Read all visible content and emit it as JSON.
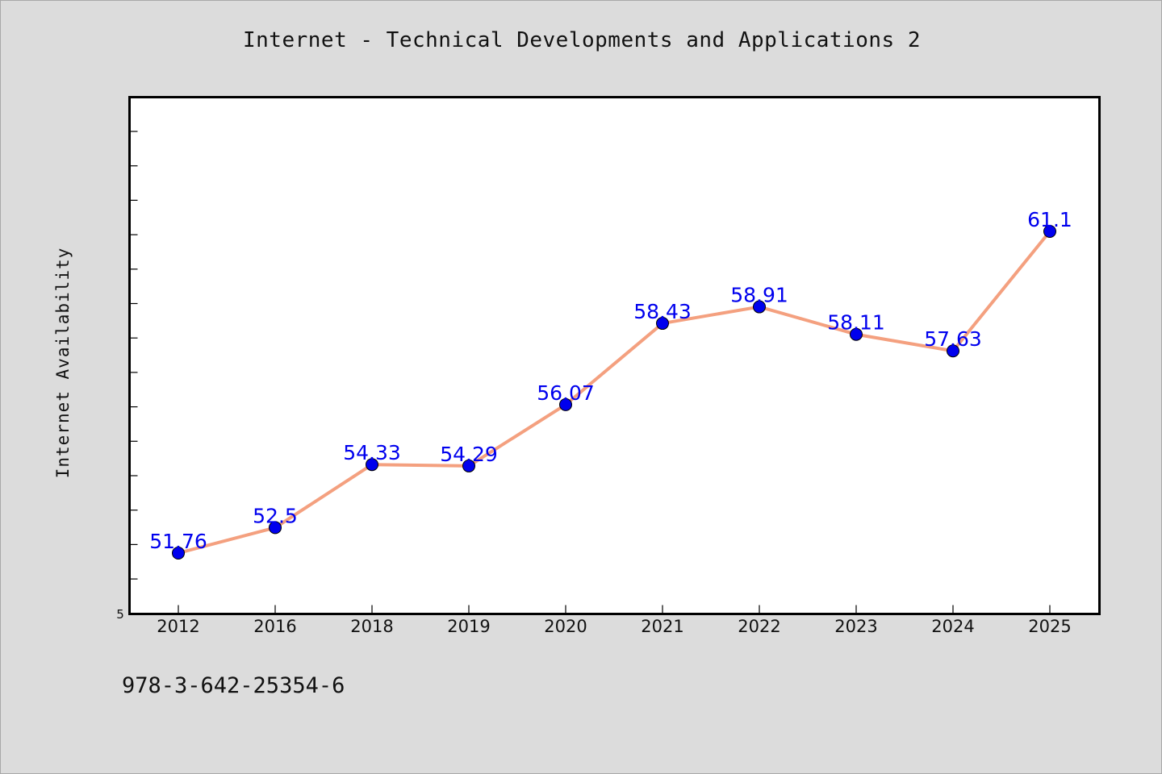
{
  "chart_data": {
    "type": "line",
    "title": "Internet - Technical Developments and Applications 2",
    "xlabel": "",
    "ylabel": "Internet Availability",
    "categories": [
      "2012",
      "2016",
      "2018",
      "2019",
      "2020",
      "2021",
      "2022",
      "2023",
      "2024",
      "2025"
    ],
    "series": [
      {
        "values": [
          51.76,
          52.5,
          54.33,
          54.29,
          56.07,
          58.43,
          58.91,
          58.11,
          57.63,
          61.1
        ]
      }
    ],
    "data_labels": [
      "51.76",
      "52.5",
      "54.33",
      "54.29",
      "56.07",
      "58.43",
      "58.91",
      "58.11",
      "57.63",
      "61.1"
    ],
    "y_tick_label": "5",
    "ylim": [
      51.0,
      66.0
    ],
    "grid": false,
    "line_color": "#f4a07f",
    "marker_color": "#0000ee",
    "label_color": "#0000ee"
  },
  "footer": {
    "code": "978-3-642-25354-6"
  }
}
